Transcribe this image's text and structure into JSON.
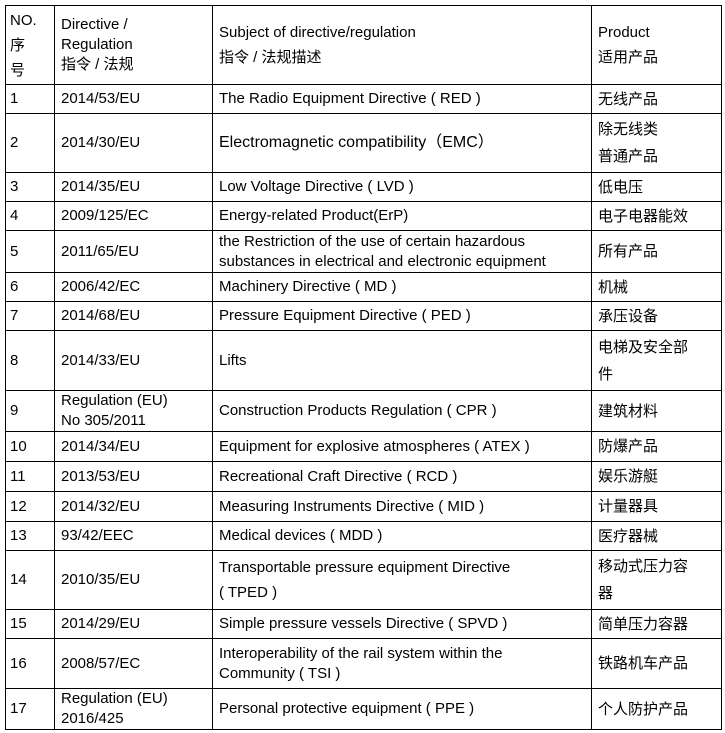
{
  "header": {
    "no": "NO.\n序\n号",
    "directive": "Directive /\nRegulation\n指令 / 法规",
    "subject": "Subject of directive/regulation\n指令 / 法规描述",
    "product": "Product\n适用产品"
  },
  "rows": [
    {
      "no": "1",
      "directive": "2014/53/EU",
      "subject": "The Radio Equipment Directive ( RED )",
      "product": "无线产品"
    },
    {
      "no": "2",
      "directive": "2014/30/EU",
      "subject": "Electromagnetic compatibility（EMC）",
      "product": "除无线类\n普通产品"
    },
    {
      "no": "3",
      "directive": "2014/35/EU",
      "subject": "Low Voltage Directive ( LVD )",
      "product": "低电压"
    },
    {
      "no": "4",
      "directive": "2009/125/EC",
      "subject": "Energy-related Product(ErP)",
      "product": "电子电器能效"
    },
    {
      "no": "5",
      "directive": "2011/65/EU",
      "subject": "the Restriction of the use of certain hazardous\nsubstances in electrical and electronic equipment",
      "product": "所有产品"
    },
    {
      "no": "6",
      "directive": "2006/42/EC",
      "subject": "Machinery Directive ( MD )",
      "product": "机械"
    },
    {
      "no": "7",
      "directive": "2014/68/EU",
      "subject": "Pressure Equipment Directive ( PED )",
      "product": "承压设备"
    },
    {
      "no": "8",
      "directive": "2014/33/EU",
      "subject": "Lifts",
      "product": "电梯及安全部\n件"
    },
    {
      "no": "9",
      "directive": "Regulation (EU)\nNo 305/2011",
      "subject": "Construction Products Regulation ( CPR )",
      "product": "建筑材料"
    },
    {
      "no": "10",
      "directive": "2014/34/EU",
      "subject": "Equipment for explosive atmospheres ( ATEX )",
      "product": "防爆产品"
    },
    {
      "no": "11",
      "directive": "2013/53/EU",
      "subject": "Recreational Craft Directive ( RCD )",
      "product": "娱乐游艇"
    },
    {
      "no": "12",
      "directive": "2014/32/EU",
      "subject": "Measuring Instruments Directive ( MID )",
      "product": "计量器具"
    },
    {
      "no": "13",
      "directive": "93/42/EEC",
      "subject": "Medical devices ( MDD )",
      "product": "医疗器械"
    },
    {
      "no": "14",
      "directive": "2010/35/EU",
      "subject": "Transportable pressure equipment Directive\n( TPED )",
      "product": "移动式压力容\n器"
    },
    {
      "no": "15",
      "directive": "2014/29/EU",
      "subject": "Simple pressure vessels Directive ( SPVD )",
      "product": "简单压力容器"
    },
    {
      "no": "16",
      "directive": "2008/57/EC",
      "subject": "Interoperability of the rail system within the\nCommunity ( TSI )",
      "product": "铁路机车产品"
    },
    {
      "no": "17",
      "directive": "Regulation (EU)\n2016/425",
      "subject": "Personal protective equipment ( PPE )",
      "product": "个人防护产品"
    }
  ]
}
